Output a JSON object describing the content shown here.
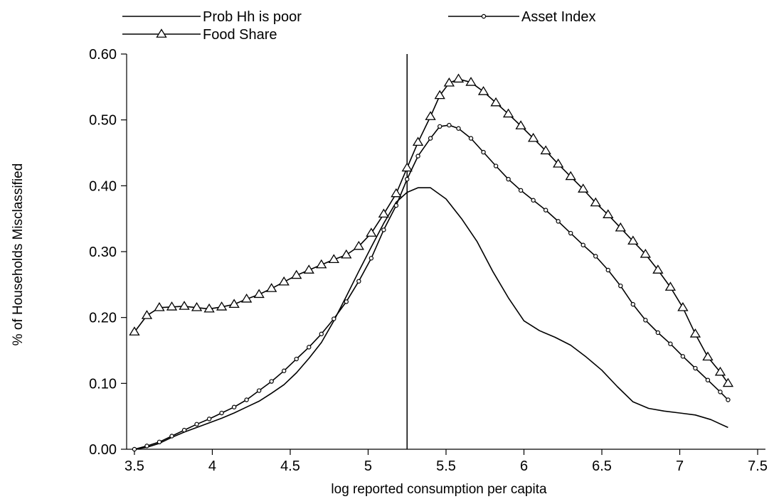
{
  "chart_data": {
    "type": "line",
    "title": "",
    "xlabel": "log reported consumption per capita",
    "ylabel": "% of Households Misclassified",
    "xlim": [
      3.45,
      7.55
    ],
    "ylim": [
      0.0,
      0.6
    ],
    "xticks": [
      3.5,
      4,
      4.5,
      5,
      5.5,
      6,
      6.5,
      7,
      7.5
    ],
    "xtick_labels": [
      "3.5",
      "4",
      "4.5",
      "5",
      "5.5",
      "6",
      "6.5",
      "7",
      "7.5"
    ],
    "yticks": [
      0.0,
      0.1,
      0.2,
      0.3,
      0.4,
      0.5,
      0.6
    ],
    "ytick_labels": [
      "0.00",
      "0.10",
      "0.20",
      "0.30",
      "0.40",
      "0.50",
      "0.60"
    ],
    "grid": false,
    "legend_position": "top",
    "reference_line": {
      "x": 5.25
    },
    "series": [
      {
        "name": "Prob Hh is poor",
        "marker": "none",
        "color": "#000000",
        "x": [
          3.5,
          3.58,
          3.66,
          3.74,
          3.82,
          3.9,
          3.98,
          4.06,
          4.14,
          4.22,
          4.3,
          4.38,
          4.46,
          4.54,
          4.62,
          4.7,
          4.78,
          4.86,
          4.94,
          5.02,
          5.1,
          5.18,
          5.25,
          5.32,
          5.4,
          5.5,
          5.6,
          5.7,
          5.8,
          5.9,
          6.0,
          6.1,
          6.2,
          6.3,
          6.4,
          6.5,
          6.6,
          6.7,
          6.8,
          6.9,
          7.0,
          7.1,
          7.2,
          7.31
        ],
        "y": [
          0.0,
          0.003,
          0.009,
          0.018,
          0.026,
          0.033,
          0.04,
          0.047,
          0.055,
          0.064,
          0.073,
          0.085,
          0.098,
          0.116,
          0.138,
          0.162,
          0.195,
          0.232,
          0.27,
          0.307,
          0.343,
          0.375,
          0.39,
          0.397,
          0.397,
          0.38,
          0.35,
          0.315,
          0.27,
          0.23,
          0.195,
          0.18,
          0.17,
          0.158,
          0.14,
          0.12,
          0.095,
          0.072,
          0.062,
          0.058,
          0.055,
          0.052,
          0.045,
          0.033
        ]
      },
      {
        "name": "Asset Index",
        "marker": "circle",
        "color": "#000000",
        "x": [
          3.5,
          3.58,
          3.66,
          3.74,
          3.82,
          3.9,
          3.98,
          4.06,
          4.14,
          4.22,
          4.3,
          4.38,
          4.46,
          4.54,
          4.62,
          4.7,
          4.78,
          4.86,
          4.94,
          5.02,
          5.1,
          5.18,
          5.25,
          5.32,
          5.4,
          5.46,
          5.52,
          5.58,
          5.66,
          5.74,
          5.82,
          5.9,
          5.98,
          6.06,
          6.14,
          6.22,
          6.3,
          6.38,
          6.46,
          6.54,
          6.62,
          6.7,
          6.78,
          6.86,
          6.94,
          7.02,
          7.1,
          7.18,
          7.26,
          7.31
        ],
        "y": [
          0.0,
          0.005,
          0.011,
          0.02,
          0.029,
          0.038,
          0.046,
          0.055,
          0.064,
          0.075,
          0.089,
          0.103,
          0.119,
          0.137,
          0.155,
          0.175,
          0.198,
          0.224,
          0.255,
          0.29,
          0.333,
          0.37,
          0.41,
          0.445,
          0.472,
          0.49,
          0.492,
          0.487,
          0.472,
          0.451,
          0.43,
          0.41,
          0.393,
          0.378,
          0.363,
          0.346,
          0.328,
          0.31,
          0.293,
          0.272,
          0.248,
          0.22,
          0.196,
          0.177,
          0.16,
          0.141,
          0.123,
          0.105,
          0.087,
          0.075
        ]
      },
      {
        "name": "Food Share",
        "marker": "triangle",
        "color": "#000000",
        "x": [
          3.5,
          3.58,
          3.66,
          3.74,
          3.82,
          3.9,
          3.98,
          4.06,
          4.14,
          4.22,
          4.3,
          4.38,
          4.46,
          4.54,
          4.62,
          4.7,
          4.78,
          4.86,
          4.94,
          5.02,
          5.1,
          5.18,
          5.25,
          5.32,
          5.4,
          5.46,
          5.52,
          5.58,
          5.66,
          5.74,
          5.82,
          5.9,
          5.98,
          6.06,
          6.14,
          6.22,
          6.3,
          6.38,
          6.46,
          6.54,
          6.62,
          6.7,
          6.78,
          6.86,
          6.94,
          7.02,
          7.1,
          7.18,
          7.26,
          7.31
        ],
        "y": [
          0.178,
          0.203,
          0.215,
          0.216,
          0.217,
          0.215,
          0.213,
          0.216,
          0.22,
          0.228,
          0.235,
          0.244,
          0.254,
          0.264,
          0.272,
          0.28,
          0.288,
          0.295,
          0.308,
          0.328,
          0.357,
          0.388,
          0.427,
          0.466,
          0.505,
          0.537,
          0.556,
          0.562,
          0.557,
          0.543,
          0.526,
          0.509,
          0.491,
          0.472,
          0.453,
          0.433,
          0.414,
          0.395,
          0.374,
          0.356,
          0.336,
          0.316,
          0.296,
          0.272,
          0.246,
          0.215,
          0.175,
          0.14,
          0.117,
          0.1
        ]
      }
    ]
  }
}
